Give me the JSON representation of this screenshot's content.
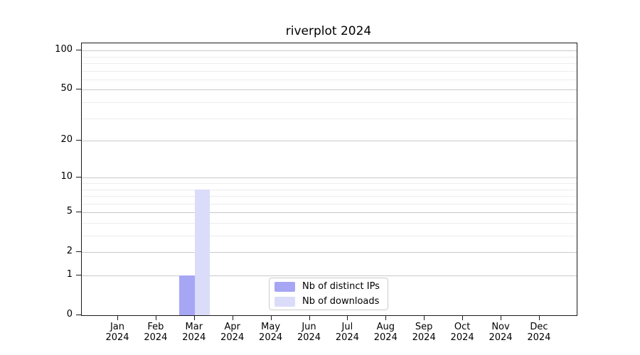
{
  "chart_data": {
    "type": "bar",
    "title": "riverplot 2024",
    "x_months": [
      "Jan",
      "Feb",
      "Mar",
      "Apr",
      "May",
      "Jun",
      "Jul",
      "Aug",
      "Sep",
      "Oct",
      "Nov",
      "Dec"
    ],
    "x_year": "2024",
    "series": [
      {
        "name": "Nb of distinct IPs",
        "color": "#a6a6f5",
        "values": [
          0,
          0,
          1,
          0,
          0,
          0,
          0,
          0,
          0,
          0,
          0,
          0
        ]
      },
      {
        "name": "Nb of downloads",
        "color": "#dbdbfa",
        "values": [
          0,
          0,
          8,
          0,
          0,
          0,
          0,
          0,
          0,
          0,
          0,
          0
        ]
      }
    ],
    "y_scale": "log1p",
    "y_major_ticks": [
      0,
      1,
      2,
      5,
      10,
      20,
      50,
      100
    ],
    "y_minor_gridlines": [
      3,
      4,
      6,
      7,
      8,
      9,
      30,
      40,
      60,
      70,
      80,
      90
    ],
    "y_max": 113.6,
    "grid": "on",
    "legend_position": "lower center"
  }
}
